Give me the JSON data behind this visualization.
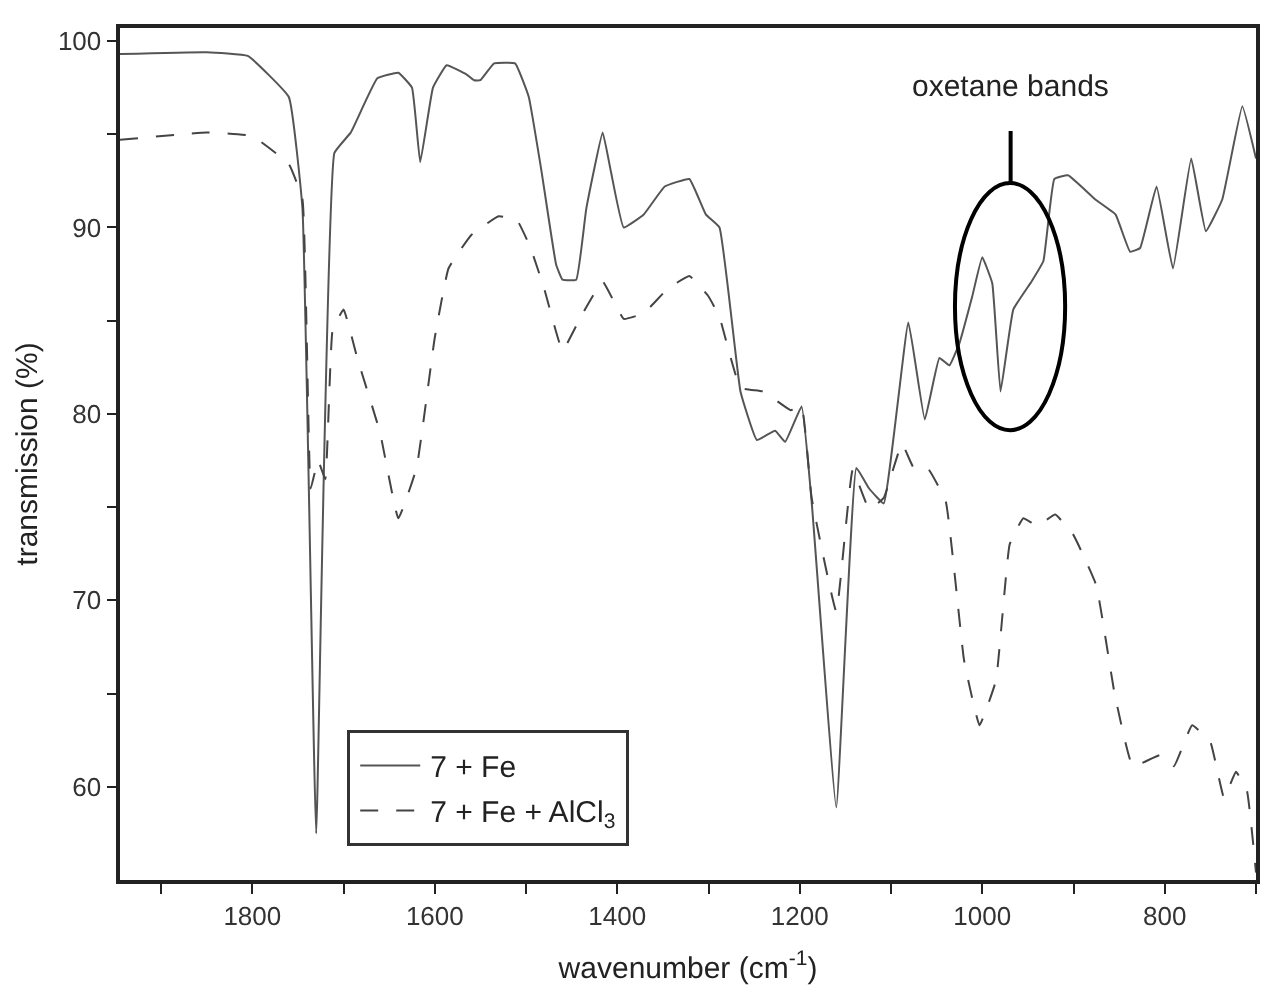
{
  "chart_data": {
    "type": "line",
    "xlabel": "wavenumber (cm$^{-1}$)",
    "ylabel": "transmission (%)",
    "xlim": [
      1945,
      700
    ],
    "ylim": [
      55,
      100.7
    ],
    "xticks": [
      {
        "value": 1900,
        "label": null
      },
      1800,
      {
        "value": 1700,
        "label": null
      },
      1600,
      {
        "value": 1500,
        "label": null
      },
      1400,
      {
        "value": 1300,
        "label": null
      },
      1200,
      {
        "value": 1100,
        "label": null
      },
      1000,
      {
        "value": 900,
        "label": null
      },
      800,
      {
        "value": 700,
        "label": null
      }
    ],
    "yticks": [
      60,
      {
        "value": 65,
        "label": null
      },
      70,
      {
        "value": 75,
        "label": null
      },
      80,
      {
        "value": 85,
        "label": null
      },
      90,
      {
        "value": 95,
        "label": null
      },
      100
    ],
    "legend": "bottom left",
    "marker": "none",
    "annotations": [
      "oxetane bands"
    ],
    "series": [
      {
        "name": "7 + Fe",
        "color": "#555555",
        "line_style": "solid",
        "x": [
          1945,
          1850,
          1805,
          1760,
          1745,
          1730,
          1710,
          1692,
          1663,
          1640,
          1625,
          1616,
          1602,
          1587,
          1565,
          1557,
          1550,
          1535,
          1512,
          1497,
          1483,
          1467,
          1460,
          1445,
          1434,
          1416,
          1407,
          1393,
          1371,
          1348,
          1321,
          1303,
          1288,
          1265,
          1247,
          1227,
          1216,
          1198,
          1187,
          1160,
          1138,
          1124,
          1108,
          1081,
          1063,
          1047,
          1036,
          1025,
          1011,
          1000,
          989,
          980,
          966,
          946,
          933,
          921,
          906,
          876,
          854,
          838,
          827,
          809,
          791,
          771,
          755,
          737,
          715,
          700
        ],
        "values": [
          99.3,
          99.4,
          99.2,
          97,
          91,
          57.5,
          94,
          95.1,
          98,
          98.3,
          97.5,
          93.5,
          97.5,
          98.7,
          98.2,
          97.9,
          97.9,
          98.8,
          98.8,
          97,
          93,
          88,
          87.2,
          87.2,
          91,
          95.1,
          93,
          90,
          90.7,
          92.2,
          92.6,
          90.7,
          90,
          81.2,
          78.6,
          79.1,
          78.5,
          80.4,
          75.3,
          58.9,
          77.1,
          76,
          75.2,
          84.9,
          79.7,
          83,
          82.6,
          83.8,
          86.3,
          88.4,
          87,
          81.2,
          85.6,
          87.1,
          88.2,
          92.6,
          92.8,
          91.5,
          90.7,
          88.7,
          88.9,
          92.2,
          87.8,
          93.7,
          89.8,
          91.5,
          96.5,
          93.7
        ]
      },
      {
        "name": "7 + Fe + AlCl$_{3}$",
        "color": "#444444",
        "line_style": "dashed",
        "x": [
          1945,
          1850,
          1800,
          1760,
          1745,
          1736,
          1728,
          1720,
          1712,
          1700,
          1685,
          1660,
          1640,
          1620,
          1600,
          1585,
          1560,
          1530,
          1510,
          1495,
          1480,
          1460,
          1440,
          1416,
          1393,
          1371,
          1345,
          1321,
          1300,
          1288,
          1265,
          1240,
          1210,
          1198,
          1187,
          1160,
          1142,
          1124,
          1108,
          1088,
          1075,
          1060,
          1040,
          1020,
          1003,
          985,
          970,
          955,
          940,
          920,
          900,
          875,
          855,
          835,
          805,
          790,
          770,
          750,
          735,
          722,
          710,
          700
        ],
        "values": [
          94.7,
          95.1,
          94.9,
          93.4,
          91.5,
          76,
          77.5,
          76.5,
          84.5,
          85.6,
          83,
          79,
          74.4,
          77.1,
          84.1,
          87.8,
          89.6,
          90.6,
          90.4,
          88.9,
          86.7,
          83.4,
          85.2,
          87.1,
          85.1,
          85.4,
          86.7,
          87.4,
          86.3,
          85.2,
          81.4,
          81.2,
          80.2,
          80.4,
          75.5,
          69.4,
          77,
          74.9,
          75.5,
          78.4,
          77.1,
          77.1,
          75.3,
          66.8,
          63.3,
          65.7,
          73,
          74.4,
          74,
          74.6,
          73.5,
          70.8,
          65,
          61.1,
          61.7,
          61.1,
          63.3,
          62.4,
          59.4,
          60.8,
          59.8,
          55.4
        ]
      }
    ]
  }
}
